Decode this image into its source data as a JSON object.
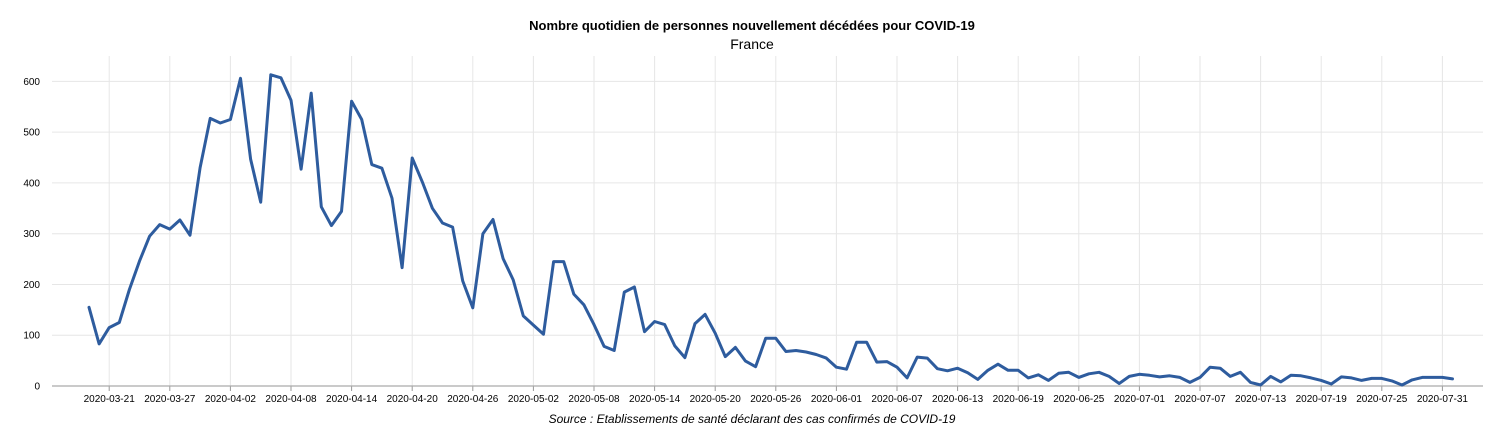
{
  "chart_data": {
    "type": "line",
    "title": "Nombre quotidien de personnes nouvellement décédées pour COVID-19",
    "subtitle": "France",
    "source": "Source : Etablissements de santé déclarant des cas confirmés de COVID-19",
    "xlabel": "",
    "ylabel": "",
    "x_start": "2020-03-19",
    "x_tick_labels": [
      "2020-03-21",
      "2020-03-27",
      "2020-04-02",
      "2020-04-08",
      "2020-04-14",
      "2020-04-20",
      "2020-04-26",
      "2020-05-02",
      "2020-05-08",
      "2020-05-14",
      "2020-05-20",
      "2020-05-26",
      "2020-06-01",
      "2020-06-07",
      "2020-06-13",
      "2020-06-19",
      "2020-06-25",
      "2020-07-01",
      "2020-07-07",
      "2020-07-13",
      "2020-07-19",
      "2020-07-25",
      "2020-07-31"
    ],
    "y_ticks": [
      0,
      100,
      200,
      300,
      400,
      500,
      600
    ],
    "ylim": [
      0,
      650
    ],
    "grid": true,
    "line_color": "#2e5c9e",
    "series": [
      {
        "values": [
          155,
          83,
          115,
          125,
          190,
          246,
          295,
          318,
          309,
          327,
          297,
          430,
          527,
          518,
          525,
          606,
          447,
          362,
          613,
          607,
          563,
          427,
          577,
          353,
          316,
          344,
          561,
          525,
          436,
          429,
          370,
          233,
          449,
          402,
          350,
          321,
          313,
          207,
          154,
          300,
          328,
          251,
          209,
          138,
          120,
          102,
          245,
          245,
          181,
          160,
          121,
          78,
          70,
          185,
          195,
          107,
          127,
          121,
          79,
          56,
          123,
          141,
          104,
          58,
          76,
          49,
          38,
          94,
          94,
          68,
          70,
          67,
          62,
          55,
          37,
          33,
          86,
          86,
          47,
          48,
          37,
          16,
          57,
          55,
          34,
          30,
          35,
          26,
          13,
          31,
          43,
          31,
          31,
          16,
          22,
          11,
          25,
          27,
          17,
          24,
          27,
          19,
          5,
          19,
          23,
          21,
          18,
          20,
          17,
          7,
          17,
          37,
          35,
          19,
          27,
          7,
          2,
          19,
          8,
          21,
          20,
          16,
          11,
          4,
          18,
          16,
          11,
          15,
          15,
          10,
          2,
          12,
          17,
          17,
          17,
          14
        ]
      }
    ]
  }
}
